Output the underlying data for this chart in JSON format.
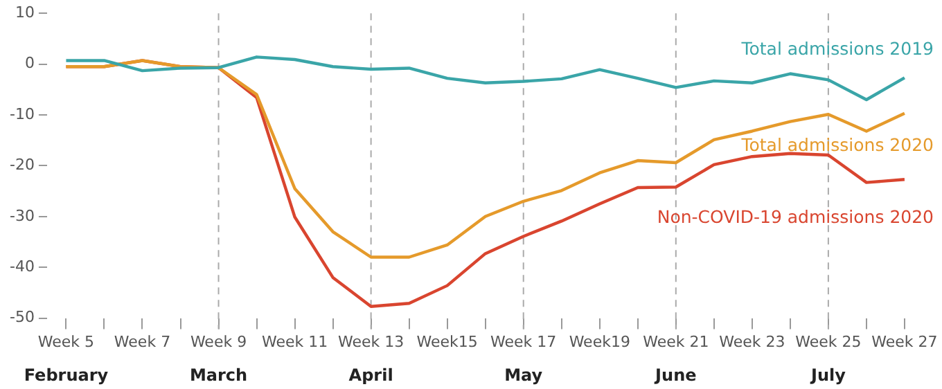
{
  "chart_data": {
    "type": "line",
    "categories": [
      "Week 5",
      null,
      "Week 7",
      null,
      "Week 9",
      null,
      "Week 11",
      null,
      "Week 13",
      null,
      "Week15",
      null,
      "Week 17",
      null,
      "Week19",
      null,
      "Week 21",
      null,
      "Week 23",
      null,
      "Week 25",
      null,
      "Week 27"
    ],
    "series": [
      {
        "name": "Total admissions 2019",
        "color": "#3aa5a8",
        "values": [
          0.7,
          0.7,
          -1.3,
          -0.8,
          -0.7,
          1.4,
          0.9,
          -0.5,
          -1,
          -0.8,
          -2.8,
          -3.7,
          -3.4,
          -2.9,
          -1.1,
          -2.8,
          -4.6,
          -3.3,
          -3.7,
          -1.9,
          -3.1,
          -7,
          -2.7
        ]
      },
      {
        "name": "Total admissions 2020",
        "color": "#e59a2b",
        "values": [
          -0.5,
          -0.5,
          0.7,
          -0.5,
          -0.7,
          -6,
          -24.5,
          -33,
          -38,
          -38,
          -35.6,
          -30,
          -27,
          -24.9,
          -21.4,
          -19,
          -19.4,
          -14.9,
          -13.2,
          -11.3,
          -9.9,
          -13.2,
          -9.7
        ]
      },
      {
        "name": "Non-COVID-19 admissions 2020",
        "color": "#d9452f",
        "values": [
          -0.5,
          -0.5,
          0.7,
          -0.5,
          -0.7,
          -6.6,
          -30.1,
          -42,
          -47.7,
          -47.1,
          -43.6,
          -37.3,
          -33.9,
          -30.9,
          -27.5,
          -24.3,
          -24.2,
          -19.8,
          -18.2,
          -17.6,
          -17.9,
          -23.3,
          -22.7
        ]
      }
    ],
    "ylim": [
      -50,
      10
    ],
    "yticks": [
      -50,
      -40,
      -30,
      -20,
      -10,
      0,
      10
    ],
    "ref_lines": [
      {
        "axis": "x",
        "value": "Week 9",
        "color": "#aaaaaa",
        "line_style": "dashed"
      },
      {
        "axis": "x",
        "value": "Week 13",
        "color": "#aaaaaa",
        "line_style": "dashed"
      },
      {
        "axis": "x",
        "value": "Week 17",
        "color": "#aaaaaa",
        "line_style": "dashed"
      },
      {
        "axis": "x",
        "value": "Week 21",
        "color": "#aaaaaa",
        "line_style": "dashed"
      },
      {
        "axis": "x",
        "value": "Week 25",
        "color": "#aaaaaa",
        "line_style": "dashed"
      }
    ],
    "annotations": [
      "February",
      "March",
      "April",
      "May",
      "June",
      "July"
    ],
    "grid": false,
    "legend": false,
    "marker": "none",
    "line_style": "solid"
  }
}
